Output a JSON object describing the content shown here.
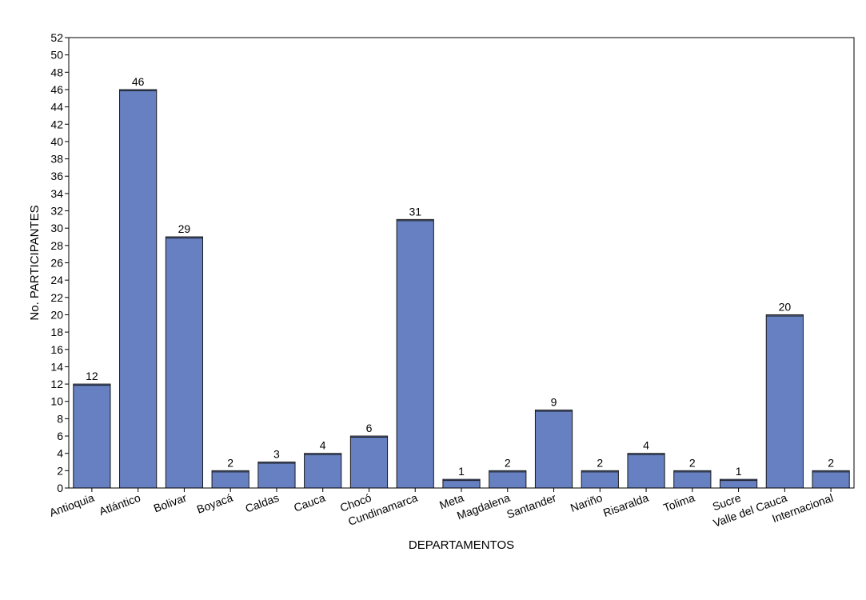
{
  "chart_data": {
    "type": "bar",
    "categories": [
      "Antioquia",
      "Atlántico",
      "Bolivar",
      "Boyacá",
      "Caldas",
      "Cauca",
      "Chocó",
      "Cundinamarca",
      "Meta",
      "Magdalena",
      "Santander",
      "Nariño",
      "Risaralda",
      "Tolima",
      "Sucre",
      "Valle del Cauca",
      "Internacional"
    ],
    "values": [
      12,
      46,
      29,
      2,
      3,
      4,
      6,
      31,
      1,
      2,
      9,
      2,
      4,
      2,
      1,
      20,
      2
    ],
    "xlabel": "DEPARTAMENTOS",
    "ylabel": "No. PARTICIPANTES",
    "ylim": [
      0,
      52
    ],
    "ytick_step": 2,
    "grid": false,
    "legend": "none",
    "bar_color": "#6680C1",
    "bar_edge_color": "#1a1a1a"
  }
}
